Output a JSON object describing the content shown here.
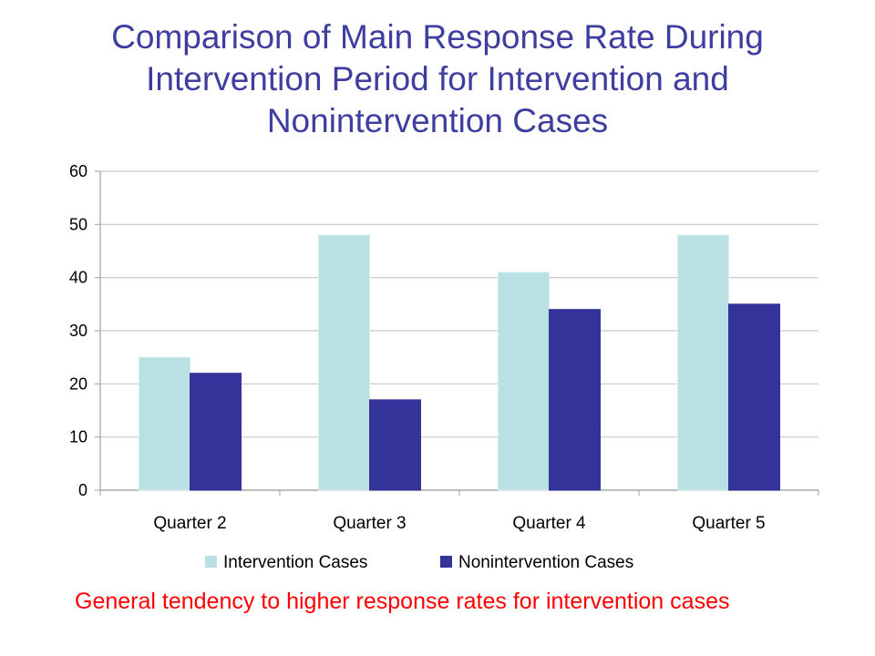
{
  "title_lines": [
    "Comparison of Main Response Rate During",
    "Intervention Period for Intervention and",
    "Nonintervention Cases"
  ],
  "note": "General tendency to higher response rates for intervention cases",
  "chart_data": {
    "type": "bar",
    "title": "Comparison of Main Response Rate During Intervention Period for Intervention and Nonintervention Cases",
    "categories": [
      "Quarter 2",
      "Quarter 3",
      "Quarter 4",
      "Quarter 5"
    ],
    "series": [
      {
        "name": "Intervention Cases",
        "values": [
          25,
          48,
          41,
          48
        ],
        "color": "#b9e1e3"
      },
      {
        "name": "Nonintervention Cases",
        "values": [
          22,
          17,
          34,
          35
        ],
        "color": "#333399"
      }
    ],
    "ylim": [
      0,
      60
    ],
    "yticks": [
      0,
      10,
      20,
      30,
      40,
      50,
      60
    ],
    "grid": true,
    "legend": "bottom",
    "xlabel": "",
    "ylabel": ""
  }
}
